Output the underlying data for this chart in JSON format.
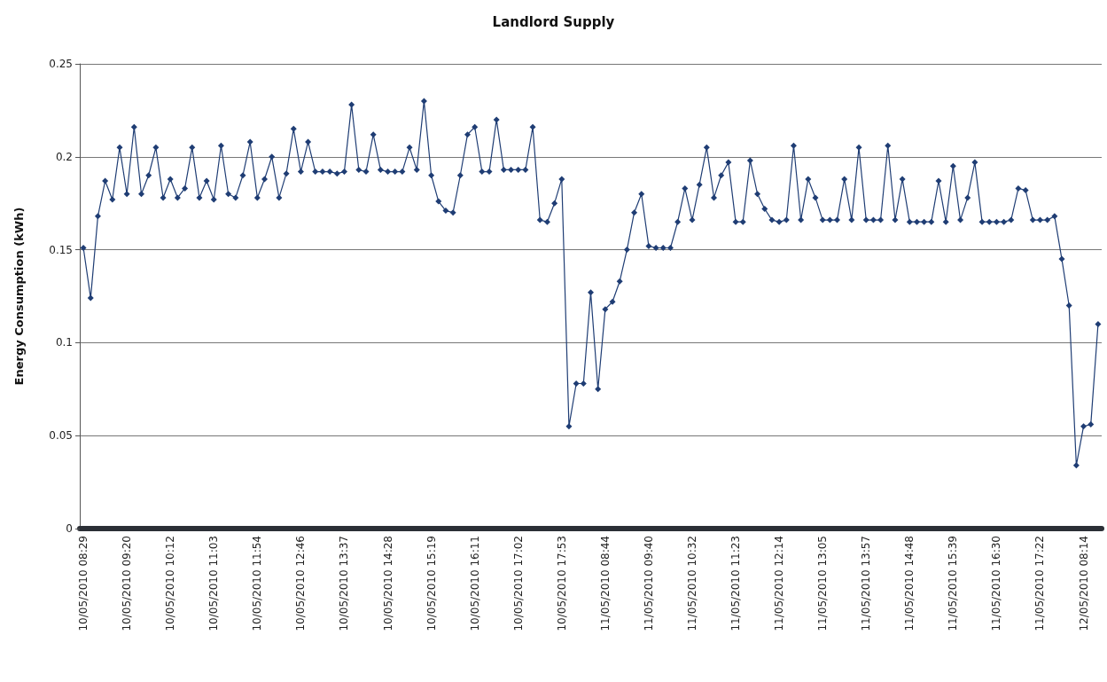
{
  "chart_data": {
    "type": "line",
    "title": "Landlord Supply",
    "ylabel": "Energy Consumption (kWh)",
    "categories": [
      "10/05/2010 08:29",
      null,
      null,
      null,
      null,
      null,
      "10/05/2010 09:20",
      null,
      null,
      null,
      null,
      null,
      "10/05/2010 10:12",
      null,
      null,
      null,
      null,
      null,
      "10/05/2010 11:03",
      null,
      null,
      null,
      null,
      null,
      "10/05/2010 11:54",
      null,
      null,
      null,
      null,
      null,
      "10/05/2010 12:46",
      null,
      null,
      null,
      null,
      null,
      "10/05/2010 13:37",
      null,
      null,
      null,
      null,
      null,
      "10/05/2010 14:28",
      null,
      null,
      null,
      null,
      null,
      "10/05/2010 15:19",
      null,
      null,
      null,
      null,
      null,
      "10/05/2010 16:11",
      null,
      null,
      null,
      null,
      null,
      "10/05/2010 17:02",
      null,
      null,
      null,
      null,
      null,
      "10/05/2010 17:53",
      null,
      null,
      null,
      null,
      null,
      "11/05/2010 08:44",
      null,
      null,
      null,
      null,
      null,
      "11/05/2010 09:40",
      null,
      null,
      null,
      null,
      null,
      "11/05/2010 10:32",
      null,
      null,
      null,
      null,
      null,
      "11/05/2010 11:23",
      null,
      null,
      null,
      null,
      null,
      "11/05/2010 12:14",
      null,
      null,
      null,
      null,
      null,
      "11/05/2010 13:05",
      null,
      null,
      null,
      null,
      null,
      "11/05/2010 13:57",
      null,
      null,
      null,
      null,
      null,
      "11/05/2010 14:48",
      null,
      null,
      null,
      null,
      null,
      "11/05/2010 15:39",
      null,
      null,
      null,
      null,
      null,
      "11/05/2010 16:30",
      null,
      null,
      null,
      null,
      null,
      "11/05/2010 17:22",
      null,
      null,
      null,
      null,
      null,
      "12/05/2010 08:14",
      null,
      null
    ],
    "series": [
      {
        "color": "#1f3d74",
        "values": [
          0.151,
          0.124,
          0.168,
          0.187,
          0.177,
          0.205,
          0.18,
          0.216,
          0.18,
          0.19,
          0.205,
          0.178,
          0.188,
          0.178,
          0.183,
          0.205,
          0.178,
          0.187,
          0.177,
          0.206,
          0.18,
          0.178,
          0.19,
          0.208,
          0.178,
          0.188,
          0.2,
          0.178,
          0.191,
          0.215,
          0.192,
          0.208,
          0.192,
          0.192,
          0.192,
          0.191,
          0.192,
          0.228,
          0.193,
          0.192,
          0.212,
          0.193,
          0.192,
          0.192,
          0.192,
          0.205,
          0.193,
          0.23,
          0.19,
          0.176,
          0.171,
          0.17,
          0.19,
          0.212,
          0.216,
          0.192,
          0.192,
          0.22,
          0.193,
          0.193,
          0.193,
          0.193,
          0.216,
          0.166,
          0.165,
          0.175,
          0.188,
          0.055,
          0.078,
          0.078,
          0.127,
          0.075,
          0.118,
          0.122,
          0.133,
          0.15,
          0.17,
          0.18,
          0.152,
          0.151,
          0.151,
          0.151,
          0.165,
          0.183,
          0.166,
          0.185,
          0.205,
          0.178,
          0.19,
          0.197,
          0.165,
          0.165,
          0.198,
          0.18,
          0.172,
          0.166,
          0.165,
          0.166,
          0.206,
          0.166,
          0.188,
          0.178,
          0.166,
          0.166,
          0.166,
          0.188,
          0.166,
          0.205,
          0.166,
          0.166,
          0.166,
          0.206,
          0.166,
          0.188,
          0.165,
          0.165,
          0.165,
          0.165,
          0.187,
          0.165,
          0.195,
          0.166,
          0.178,
          0.197,
          0.165,
          0.165,
          0.165,
          0.165,
          0.166,
          0.183,
          0.182,
          0.166,
          0.166,
          0.166,
          0.168,
          0.145,
          0.12,
          0.034,
          0.055,
          0.056,
          0.11
        ]
      }
    ],
    "ylim": [
      0,
      0.25
    ],
    "yticks": [
      0,
      0.05,
      0.1,
      0.15,
      0.2,
      0.25
    ],
    "grid": "y",
    "marker": "diamond",
    "line_style": "solid"
  }
}
